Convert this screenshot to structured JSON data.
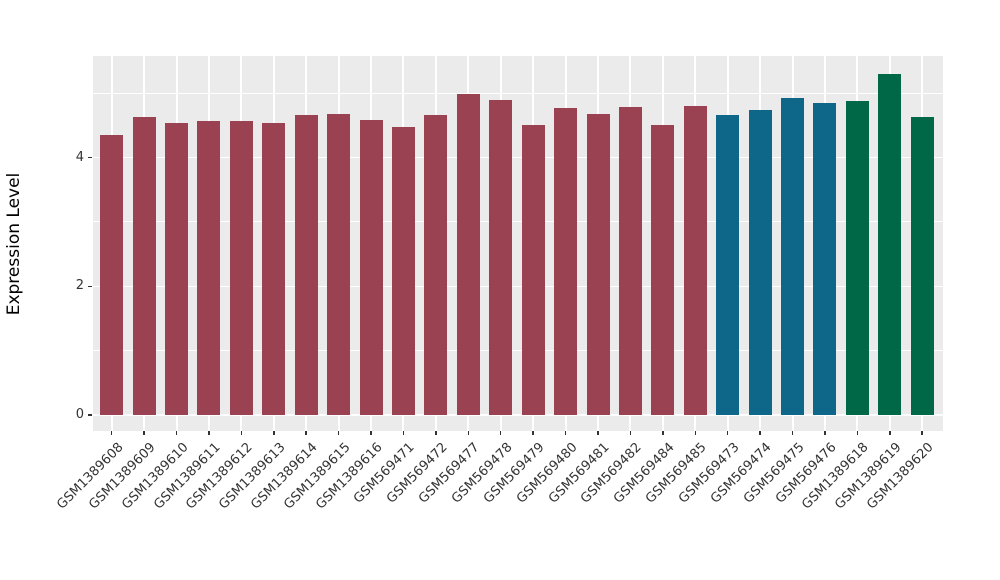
{
  "figure": {
    "background": "#FFFFFF",
    "panel_background": "#EBEBEB",
    "grid_color": "#FFFFFF",
    "tick_color": "#333333",
    "axis_text_color": "#333333",
    "axis_title_color": "#000000"
  },
  "chart_data": {
    "type": "bar",
    "title": "",
    "xlabel": "",
    "ylabel": "Expression Level",
    "ylim": [
      0,
      5.57
    ],
    "yticks_major": [
      0,
      2,
      4
    ],
    "yticks_minor": [
      1,
      3,
      5
    ],
    "grid": true,
    "legend_position": "none",
    "x_label_rotation_deg": 45,
    "categories": [
      "GSM1389608",
      "GSM1389609",
      "GSM1389610",
      "GSM1389611",
      "GSM1389612",
      "GSM1389613",
      "GSM1389614",
      "GSM1389615",
      "GSM1389616",
      "GSM569471",
      "GSM569472",
      "GSM569477",
      "GSM569478",
      "GSM569479",
      "GSM569480",
      "GSM569481",
      "GSM569482",
      "GSM569484",
      "GSM569485",
      "GSM569473",
      "GSM569474",
      "GSM569475",
      "GSM569476",
      "GSM1389618",
      "GSM1389619",
      "GSM1389620"
    ],
    "values": [
      4.35,
      4.63,
      4.53,
      4.56,
      4.56,
      4.53,
      4.66,
      4.68,
      4.58,
      4.47,
      4.66,
      4.99,
      4.89,
      4.51,
      4.77,
      4.68,
      4.79,
      4.5,
      4.8,
      4.66,
      4.74,
      4.93,
      4.84,
      4.88,
      5.29,
      4.63
    ],
    "bar_colors": [
      "#9A4252",
      "#9A4252",
      "#9A4252",
      "#9A4252",
      "#9A4252",
      "#9A4252",
      "#9A4252",
      "#9A4252",
      "#9A4252",
      "#9A4252",
      "#9A4252",
      "#9A4252",
      "#9A4252",
      "#9A4252",
      "#9A4252",
      "#9A4252",
      "#9A4252",
      "#9A4252",
      "#9A4252",
      "#0E6789",
      "#0E6789",
      "#0E6789",
      "#0E6789",
      "#006846",
      "#006846",
      "#006846"
    ],
    "palette": {
      "maroon": "#9A4252",
      "teal": "#0E6789",
      "green": "#006846"
    }
  }
}
